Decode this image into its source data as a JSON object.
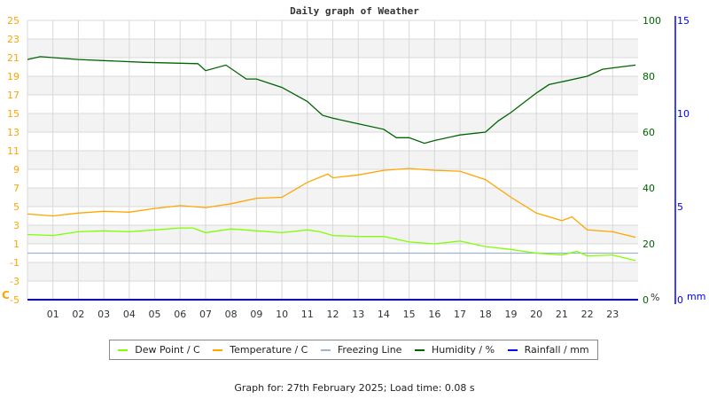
{
  "chart_data": {
    "type": "line",
    "title": "Daily graph of Weather",
    "x_ticks": [
      "01",
      "02",
      "03",
      "04",
      "05",
      "06",
      "07",
      "08",
      "09",
      "10",
      "11",
      "12",
      "13",
      "14",
      "15",
      "16",
      "17",
      "18",
      "19",
      "20",
      "21",
      "22",
      "23"
    ],
    "xlim": [
      0,
      24
    ],
    "grid": true,
    "legend_position": "bottom",
    "axes": {
      "left": {
        "label": "C",
        "ylim": [
          -5,
          25
        ],
        "ticks": [
          -5,
          -3,
          -1,
          1,
          3,
          5,
          7,
          9,
          11,
          13,
          15,
          17,
          19,
          21,
          23,
          25
        ],
        "color": "#ffa500"
      },
      "right_humidity": {
        "label": "%",
        "ylim": [
          0,
          100
        ],
        "ticks": [
          0,
          20,
          40,
          60,
          80,
          100
        ],
        "color": "#006400"
      },
      "right_rain": {
        "label": "mm",
        "ylim": [
          0,
          15
        ],
        "ticks": [
          0,
          5,
          10,
          15
        ],
        "color": "#0000ff"
      }
    },
    "series": [
      {
        "name": "Dew Point / C",
        "axis": "left",
        "color": "#80ff00",
        "x": [
          0,
          1,
          2,
          3,
          4,
          5,
          6,
          6.5,
          7,
          8,
          9,
          10,
          11,
          11.5,
          12,
          13,
          14,
          15,
          16,
          17,
          18,
          19,
          20,
          21,
          21.6,
          22,
          23,
          23.9
        ],
        "y": [
          2.0,
          1.9,
          2.3,
          2.4,
          2.3,
          2.5,
          2.7,
          2.7,
          2.2,
          2.6,
          2.4,
          2.2,
          2.5,
          2.3,
          1.9,
          1.8,
          1.8,
          1.2,
          1.0,
          1.3,
          0.7,
          0.4,
          0.0,
          -0.2,
          0.2,
          -0.3,
          -0.2,
          -0.8
        ]
      },
      {
        "name": "Temperature / C",
        "axis": "left",
        "color": "#ffa500",
        "x": [
          0,
          1,
          2,
          3,
          4,
          5,
          6,
          7,
          8,
          9,
          10,
          11,
          11.8,
          12,
          13,
          14,
          15,
          16,
          17,
          18,
          19,
          20,
          21,
          21.4,
          22,
          23,
          23.9
        ],
        "y": [
          4.2,
          4.0,
          4.3,
          4.5,
          4.4,
          4.8,
          5.1,
          4.9,
          5.3,
          5.9,
          6.0,
          7.6,
          8.5,
          8.1,
          8.4,
          8.9,
          9.1,
          8.9,
          8.8,
          7.9,
          6.0,
          4.3,
          3.5,
          3.9,
          2.5,
          2.3,
          1.7
        ]
      },
      {
        "name": "Freezing Line",
        "axis": "left",
        "color": "#9fb4cc",
        "x": [
          0,
          24
        ],
        "y": [
          0,
          0
        ]
      },
      {
        "name": "Humidity / %",
        "axis": "right_humidity",
        "color": "#006400",
        "x": [
          0,
          0.5,
          2,
          4.6,
          6.7,
          7,
          7.8,
          8.6,
          9,
          10,
          11,
          11.6,
          12,
          13,
          14,
          14.5,
          15,
          15.6,
          16,
          17,
          18,
          18.5,
          19,
          20,
          20.5,
          21,
          22,
          22.6,
          23,
          23.9
        ],
        "y": [
          86,
          87,
          86,
          85,
          84.5,
          82,
          84,
          79,
          79,
          76,
          71,
          66,
          65,
          63,
          61,
          58,
          58,
          56,
          57,
          59,
          60,
          64,
          67,
          74,
          77,
          78,
          80,
          82.5,
          83,
          84
        ]
      },
      {
        "name": "Rainfall / mm",
        "axis": "right_rain",
        "color": "#0000ff",
        "x": [
          0,
          24
        ],
        "y": [
          0,
          0
        ]
      }
    ]
  },
  "footer": "Graph for: 27th February 2025; Load time: 0.08 s"
}
